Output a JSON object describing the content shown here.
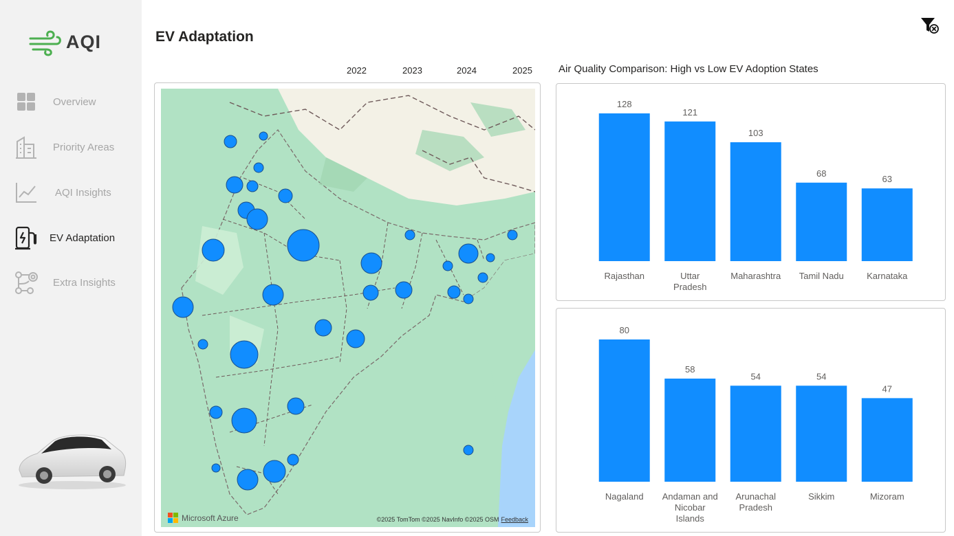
{
  "app": {
    "logo_text": "AQI"
  },
  "sidebar": {
    "items": [
      {
        "label": "Overview",
        "icon": "grid-icon",
        "active": false
      },
      {
        "label": "Priority Areas",
        "icon": "buildings-icon",
        "active": false
      },
      {
        "label": "AQI Insights",
        "icon": "line-chart-icon",
        "active": false
      },
      {
        "label": "EV Adaptation",
        "icon": "ev-charger-icon",
        "active": true
      },
      {
        "label": "Extra Insights",
        "icon": "nodes-icon",
        "active": false
      }
    ]
  },
  "header": {
    "title": "EV Adaptation",
    "filter_icon": "clear-filter-icon"
  },
  "year_slicer": {
    "years": [
      "2022",
      "2023",
      "2024",
      "2025"
    ]
  },
  "map": {
    "brand": "Microsoft Azure",
    "attribution": "©2025 TomTom  ©2025 NavInfo  ©2025 OSM",
    "feedback": "Feedback",
    "colors": {
      "water": "#a8d4fb",
      "land": "#b1e2c4",
      "bubble": "#118dff"
    }
  },
  "charts": {
    "title": "Air Quality Comparison: High vs Low EV Adoption States",
    "bar_color": "#118dff"
  },
  "chart_data": [
    {
      "type": "bar",
      "categories": [
        "Rajasthan",
        "Uttar Pradesh",
        "Maharashtra",
        "Tamil Nadu",
        "Karnataka"
      ],
      "values": [
        128,
        121,
        103,
        68,
        63
      ],
      "ylim": [
        0,
        128
      ]
    },
    {
      "type": "bar",
      "categories": [
        "Nagaland",
        "Andaman and Nicobar Islands",
        "Arunachal Pradesh",
        "Sikkim",
        "Mizoram"
      ],
      "values": [
        80,
        58,
        54,
        54,
        47
      ],
      "ylim": [
        0,
        80
      ]
    }
  ]
}
